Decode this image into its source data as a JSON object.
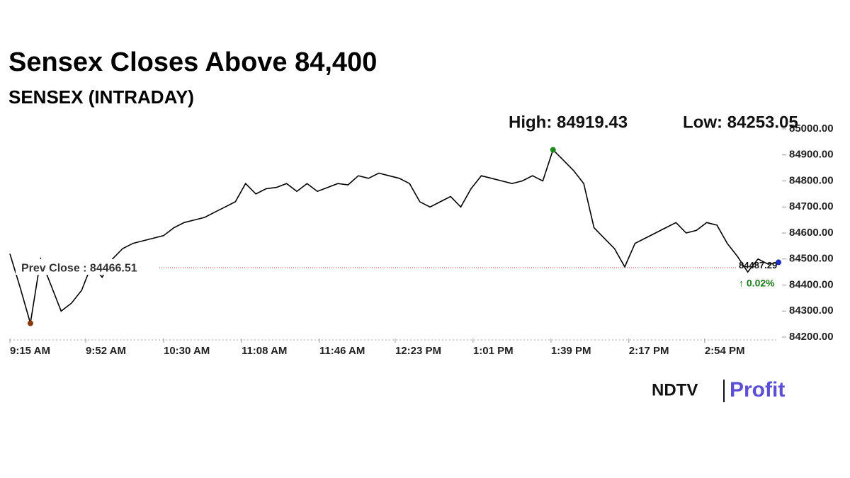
{
  "chart_data": {
    "type": "line",
    "title": "Sensex Closes Above 84,400",
    "subtitle": "SENSEX (INTRADAY)",
    "annotations": [
      "High: 84919.43",
      "Low: 84253.05"
    ],
    "reference_line": {
      "value": 84466.51,
      "label": "Prev Close : 84466.51"
    },
    "change_label": "↑ 0.02%",
    "brand": [
      "NDTV",
      "Profit"
    ],
    "color": "#000000",
    "x": [
      "9:15 AM",
      "9:20 AM",
      "9:25 AM",
      "9:30 AM",
      "9:35 AM",
      "9:40 AM",
      "9:45 AM",
      "9:50 AM",
      "9:55 AM",
      "10:00 AM",
      "10:05 AM",
      "10:10 AM",
      "10:15 AM",
      "10:20 AM",
      "10:25 AM",
      "10:30 AM",
      "10:35 AM",
      "10:40 AM",
      "10:45 AM",
      "10:50 AM",
      "10:55 AM",
      "11:00 AM",
      "11:05 AM",
      "11:10 AM",
      "11:15 AM",
      "11:20 AM",
      "11:25 AM",
      "11:30 AM",
      "11:35 AM",
      "11:40 AM",
      "11:45 AM",
      "11:50 AM",
      "11:55 AM",
      "12:00 PM",
      "12:05 PM",
      "12:10 PM",
      "12:15 PM",
      "12:20 PM",
      "12:25 PM",
      "12:30 PM",
      "12:35 PM",
      "12:40 PM",
      "12:45 PM",
      "12:50 PM",
      "12:55 PM",
      "1:00 PM",
      "1:05 PM",
      "1:10 PM",
      "1:15 PM",
      "1:20 PM",
      "1:25 PM",
      "1:30 PM",
      "1:35 PM",
      "1:40 PM",
      "1:45 PM",
      "1:50 PM",
      "1:55 PM",
      "2:00 PM",
      "2:05 PM",
      "2:10 PM",
      "2:15 PM",
      "2:20 PM",
      "2:25 PM",
      "2:30 PM",
      "2:35 PM",
      "2:40 PM",
      "2:45 PM",
      "2:50 PM",
      "2:55 PM",
      "3:00 PM",
      "3:05 PM",
      "3:10 PM",
      "3:15 PM",
      "3:20 PM",
      "3:25 PM",
      "3:30 PM"
    ],
    "values": [
      84520,
      84390,
      84253.05,
      84500,
      84400,
      84300,
      84330,
      84380,
      84480,
      84430,
      84500,
      84540,
      84560,
      84570,
      84580,
      84590,
      84620,
      84640,
      84650,
      84660,
      84680,
      84700,
      84720,
      84790,
      84750,
      84770,
      84775,
      84790,
      84760,
      84790,
      84760,
      84775,
      84790,
      84785,
      84820,
      84810,
      84830,
      84820,
      84810,
      84790,
      84720,
      84700,
      84720,
      84740,
      84700,
      84770,
      84820,
      84810,
      84800,
      84790,
      84800,
      84820,
      84800,
      84919.43,
      84880,
      84840,
      84790,
      84620,
      84580,
      84540,
      84470,
      84560,
      84580,
      84600,
      84620,
      84640,
      84600,
      84610,
      84640,
      84630,
      84560,
      84510,
      84450,
      84500,
      84480,
      84487.29
    ],
    "xticks": [
      "9:15 AM",
      "9:52 AM",
      "10:30 AM",
      "11:08 AM",
      "11:46 AM",
      "12:23 PM",
      "1:01 PM",
      "1:39 PM",
      "2:17 PM",
      "2:54 PM"
    ],
    "ylim": [
      84200,
      85000
    ],
    "yticks": [
      {
        "value": 84200,
        "label": "84200.00"
      },
      {
        "value": 84300,
        "label": "84300.00"
      },
      {
        "value": 84400,
        "label": "84400.00"
      },
      {
        "value": 84500,
        "label": "84500.00"
      },
      {
        "value": 84600,
        "label": "84600.00"
      },
      {
        "value": 84700,
        "label": "84700.00"
      },
      {
        "value": 84800,
        "label": "84800.00"
      },
      {
        "value": 84900,
        "label": "84900.00"
      },
      {
        "value": 85000,
        "label": "85000.00"
      }
    ]
  }
}
